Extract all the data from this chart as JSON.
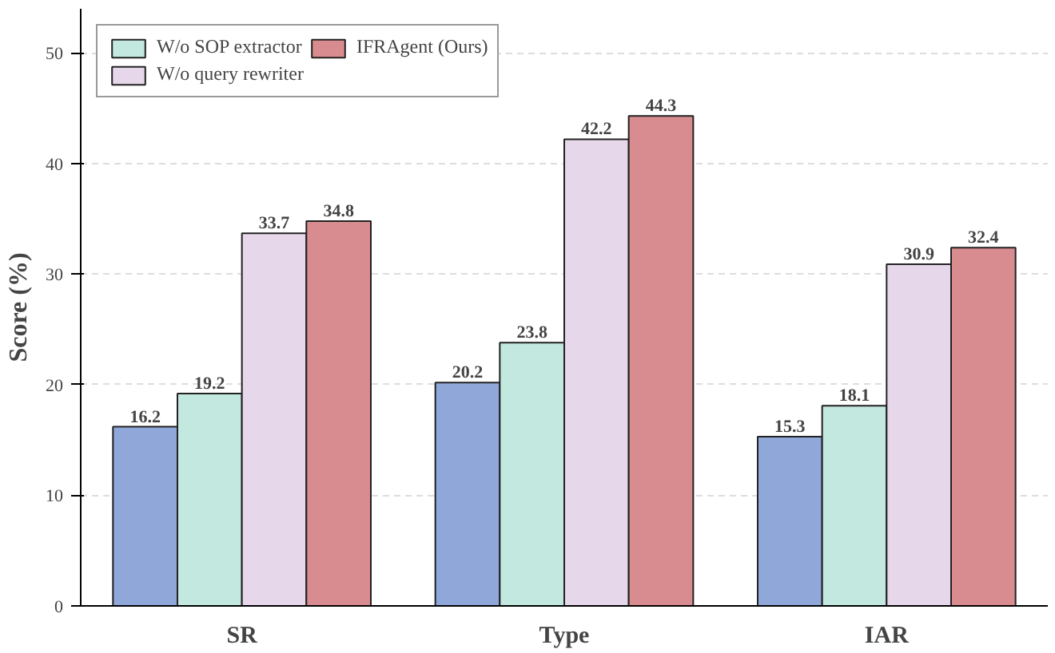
{
  "chart_data": {
    "type": "bar",
    "ylabel": "Score (%)",
    "categories": [
      "SR",
      "Type",
      "IAR"
    ],
    "series": [
      {
        "color": "#8fa8d9",
        "values": [
          16.2,
          20.2,
          15.3
        ]
      },
      {
        "name": "W/o SOP extractor",
        "color": "#c3e8e0",
        "values": [
          19.2,
          23.8,
          18.1
        ]
      },
      {
        "name": "W/o query rewriter",
        "color": "#e6d8ea",
        "values": [
          33.7,
          42.2,
          30.9
        ]
      },
      {
        "name": "IFRAgent (Ours)",
        "color": "#d98c90",
        "values": [
          34.8,
          44.3,
          32.4
        ]
      }
    ],
    "ylim": [
      0,
      54
    ],
    "yticks": [
      0,
      10,
      20,
      30,
      40,
      50
    ],
    "grid": "y",
    "legend": "top left",
    "data_labels": true
  }
}
